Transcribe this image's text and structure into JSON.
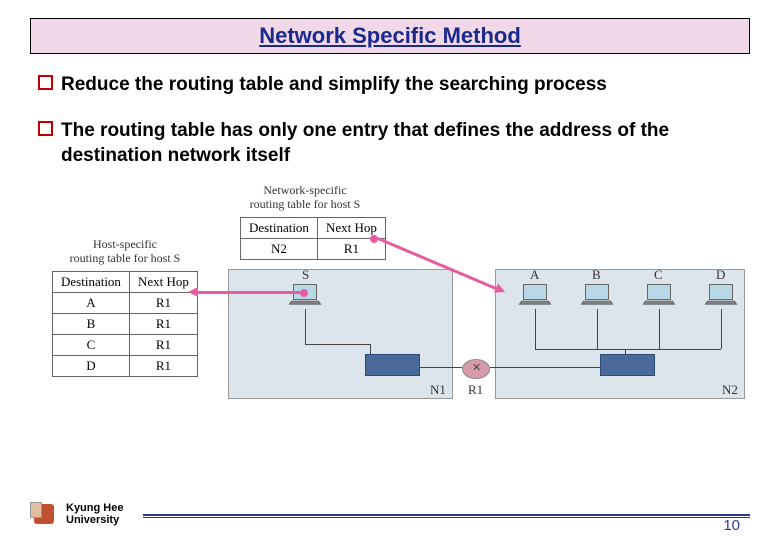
{
  "title": "Network Specific Method",
  "bullets": [
    "Reduce the routing table and simplify the searching process",
    "The routing table has only one entry that defines the address of the destination network itself"
  ],
  "diagram": {
    "net_label": "Network-specific\nrouting table for host S",
    "host_label": "Host-specific\nrouting table for host S",
    "net_table": {
      "headers": [
        "Destination",
        "Next Hop"
      ],
      "rows": [
        [
          "N2",
          "R1"
        ]
      ]
    },
    "host_table": {
      "headers": [
        "Destination",
        "Next Hop"
      ],
      "rows": [
        [
          "A",
          "R1"
        ],
        [
          "B",
          "R1"
        ],
        [
          "C",
          "R1"
        ],
        [
          "D",
          "R1"
        ]
      ]
    },
    "nodes": {
      "S": "S",
      "A": "A",
      "B": "B",
      "C": "C",
      "D": "D",
      "R1": "R1",
      "N1": "N1",
      "N2": "N2"
    },
    "colors": {
      "network_bg": "#dde5ec",
      "device_bg": "#4a6a9a",
      "router_bg": "#d89aaa",
      "laptop_screen": "#b8d8e8",
      "arrow": "#e85aa0",
      "title_bg": "#f0d8e8",
      "title_color": "#1a2a8a"
    }
  },
  "footer": {
    "university_line1": "Kyung Hee",
    "university_line2": "University",
    "page": "10"
  }
}
